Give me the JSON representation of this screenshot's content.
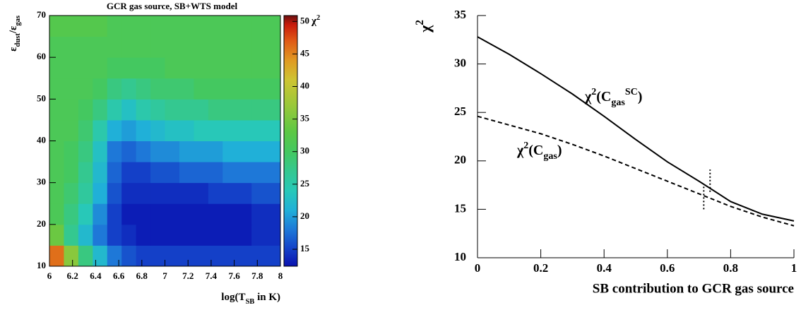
{
  "chart_data": [
    {
      "type": "heatmap",
      "title": "GCR gas source, SB+WTS model",
      "x_label": [
        {
          "text": "log(T",
          "style": "normal"
        },
        {
          "text": "SB",
          "style": "sub"
        },
        {
          "text": " in K)",
          "style": "normal"
        }
      ],
      "y_label": [
        {
          "text": "ε",
          "style": "normal"
        },
        {
          "text": "dust",
          "style": "sub"
        },
        {
          "text": "/ε",
          "style": "normal"
        },
        {
          "text": "gas",
          "style": "sub"
        }
      ],
      "x_bins": [
        6,
        6.125,
        6.25,
        6.375,
        6.5,
        6.625,
        6.75,
        6.875,
        7,
        7.125,
        7.25,
        7.375,
        7.5,
        7.625,
        7.75,
        7.875,
        8
      ],
      "y_bins": [
        10,
        15,
        20,
        25,
        30,
        35,
        40,
        45,
        50,
        55,
        60,
        65,
        70
      ],
      "z": [
        [
          46,
          36,
          28,
          22,
          18,
          16,
          15,
          15,
          15,
          15,
          15,
          15,
          15,
          15,
          15,
          15
        ],
        [
          34,
          27,
          22,
          18,
          15,
          14,
          13,
          13,
          13,
          13,
          13,
          13,
          13,
          13,
          14,
          14
        ],
        [
          31,
          28,
          24,
          19,
          15,
          13,
          13,
          13,
          13,
          13,
          13,
          13,
          13,
          13,
          14,
          14
        ],
        [
          31,
          29,
          26,
          21,
          16,
          14,
          14,
          14,
          14,
          14,
          14,
          15,
          15,
          15,
          16,
          16
        ],
        [
          31,
          30,
          27,
          22,
          17,
          15,
          15,
          16,
          16,
          17,
          17,
          17,
          18,
          18,
          18,
          18
        ],
        [
          31,
          30,
          28,
          23,
          18,
          17,
          18,
          19,
          19,
          20,
          20,
          20,
          21,
          21,
          21,
          21
        ],
        [
          31,
          31,
          29,
          25,
          21,
          20,
          21,
          22,
          23,
          23,
          24,
          24,
          24,
          24,
          24,
          24
        ],
        [
          31,
          31,
          30,
          28,
          25,
          23,
          25,
          26,
          27,
          27,
          27,
          28,
          28,
          28,
          28,
          28
        ],
        [
          31,
          31,
          31,
          30,
          28,
          27,
          28,
          29,
          29,
          29,
          30,
          30,
          30,
          30,
          30,
          30
        ],
        [
          31,
          31,
          31,
          31,
          30,
          30,
          30,
          30,
          31,
          31,
          31,
          31,
          31,
          31,
          31,
          31
        ],
        [
          31,
          31,
          31,
          31,
          31,
          31,
          31,
          31,
          31,
          31,
          31,
          31,
          31,
          31,
          31,
          31
        ],
        [
          32,
          32,
          32,
          32,
          31,
          31,
          31,
          31,
          31,
          31,
          31,
          31,
          31,
          31,
          31,
          31
        ]
      ],
      "xlim": [
        6,
        8
      ],
      "ylim": [
        10,
        70
      ],
      "xticks": [
        6,
        6.2,
        6.4,
        6.6,
        6.8,
        7,
        7.2,
        7.4,
        7.6,
        7.8,
        8
      ],
      "yticks": [
        10,
        20,
        30,
        40,
        50,
        60,
        70
      ],
      "colorbar": {
        "label": [
          {
            "text": "χ",
            "style": "normal"
          },
          {
            "text": "2",
            "style": "sup"
          }
        ],
        "lim": [
          12.4,
          50.9
        ],
        "ticks": [
          15,
          20,
          25,
          30,
          35,
          40,
          45,
          50
        ]
      },
      "colorscale": [
        [
          12.4,
          "#0a12b0"
        ],
        [
          15,
          "#1440c8"
        ],
        [
          18,
          "#1e78d8"
        ],
        [
          21,
          "#20b0d8"
        ],
        [
          24,
          "#28c8b8"
        ],
        [
          27,
          "#34c890"
        ],
        [
          30,
          "#44c860"
        ],
        [
          33,
          "#5cc844"
        ],
        [
          37,
          "#98c83a"
        ],
        [
          41,
          "#cec432"
        ],
        [
          44,
          "#e09a22"
        ],
        [
          47,
          "#e05a16"
        ],
        [
          49.5,
          "#c81a0c"
        ],
        [
          50.9,
          "#6a1010"
        ]
      ]
    },
    {
      "type": "line",
      "x_label": "SB contribution to GCR gas source",
      "y_label": [
        {
          "text": "χ",
          "style": "normal"
        },
        {
          "text": "2",
          "style": "sup"
        }
      ],
      "x": [
        0,
        0.1,
        0.2,
        0.3,
        0.4,
        0.5,
        0.6,
        0.7,
        0.8,
        0.9,
        1
      ],
      "series": [
        {
          "label": [
            {
              "text": "χ",
              "style": "normal"
            },
            {
              "text": "2",
              "style": "sup"
            },
            {
              "text": "(C",
              "style": "normal"
            },
            {
              "text": "gas",
              "style": "sub"
            },
            {
              "text": "SC",
              "style": "sup"
            },
            {
              "text": ")",
              "style": "normal"
            }
          ],
          "color": "#000000",
          "dash": "solid",
          "values": [
            32.8,
            31.0,
            29.0,
            26.9,
            24.6,
            22.2,
            19.9,
            17.9,
            15.8,
            14.5,
            13.8
          ]
        },
        {
          "label": [
            {
              "text": "χ",
              "style": "normal"
            },
            {
              "text": "2",
              "style": "sup"
            },
            {
              "text": "(C",
              "style": "normal"
            },
            {
              "text": "gas",
              "style": "sub"
            },
            {
              "text": ")",
              "style": "normal"
            }
          ],
          "color": "#000000",
          "dash": "dashed",
          "values": [
            24.6,
            23.7,
            22.8,
            21.7,
            20.5,
            19.2,
            17.9,
            16.6,
            15.3,
            14.2,
            13.3
          ]
        }
      ],
      "markers": [
        {
          "x": 0.735,
          "y": [
            16.8,
            19.1
          ]
        },
        {
          "x": 0.715,
          "y": [
            15.0,
            17.6
          ]
        }
      ],
      "xlim": [
        0,
        1
      ],
      "ylim": [
        10,
        35
      ],
      "xticks": [
        0,
        0.2,
        0.4,
        0.6,
        0.8,
        1
      ],
      "yticks": [
        10,
        15,
        20,
        25,
        30,
        35
      ]
    }
  ]
}
